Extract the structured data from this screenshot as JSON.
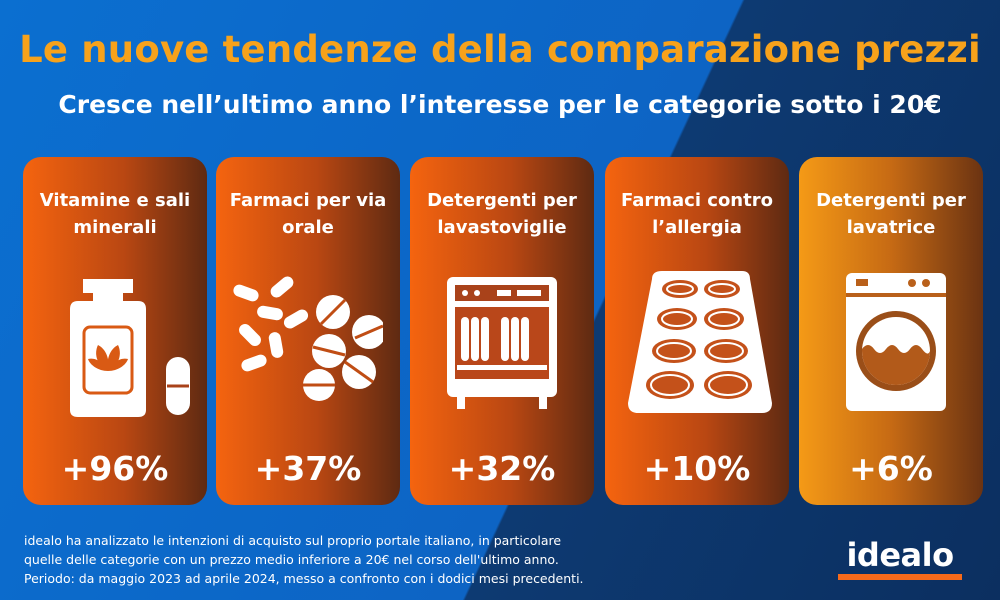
{
  "header": {
    "title": "Le nuove tendenze della comparazione prezzi",
    "subtitle": "Cresce nell’ultimo anno l’interesse per le categorie sotto i 20€"
  },
  "cards": [
    {
      "label_line1": "Vitamine e sali",
      "label_line2": "minerali",
      "value": "+96%",
      "icon": "supplement-bottle-icon"
    },
    {
      "label_line1": "Farmaci per via",
      "label_line2": "orale",
      "value": "+37%",
      "icon": "pills-icon"
    },
    {
      "label_line1": "Detergenti per",
      "label_line2": "lavastoviglie",
      "value": "+32%",
      "icon": "dishwasher-icon"
    },
    {
      "label_line1": "Farmaci contro",
      "label_line2": "l’allergia",
      "value": "+10%",
      "icon": "blister-pack-icon"
    },
    {
      "label_line1": "Detergenti per",
      "label_line2": "lavatrice",
      "value": "+6%",
      "icon": "washing-machine-icon"
    }
  ],
  "footnote": {
    "line1": "idealo ha analizzato le intenzioni di acquisto sul proprio portale italiano, in particolare",
    "line2": "quelle delle categorie con un prezzo medio inferiore a 20€ nel corso dell'ultimo anno.",
    "line3": "Periodo: da maggio 2023 ad aprile 2024, messo a confronto con i dodici mesi precedenti."
  },
  "logo": {
    "text": "idealo"
  },
  "colors": {
    "title": "#f7a21b",
    "card_gradient_start": "#f5640f",
    "card_gradient_end": "#5e2a12",
    "last_card_gradient_start": "#f59a16",
    "logo_bar": "#f76a1a"
  }
}
